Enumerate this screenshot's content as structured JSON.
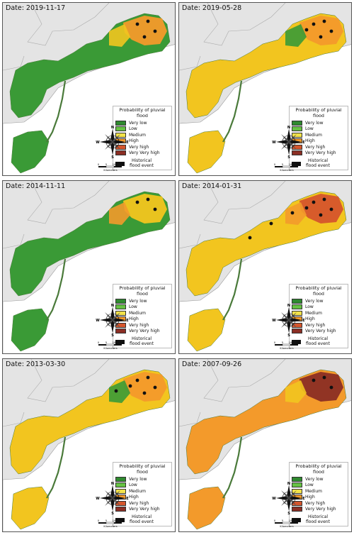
{
  "panels": [
    {
      "date": "Date: 2019-11-17",
      "dominant": "#3a9a36",
      "highlight": "#f39a2b",
      "extra": "#f2c51f",
      "hotspots": 4
    },
    {
      "date": "Date: 2019-05-28",
      "dominant": "#f2c51f",
      "highlight": "#f39a2b",
      "extra": "#3a9a36",
      "hotspots": 5
    },
    {
      "date": "Date: 2014-11-11",
      "dominant": "#3a9a36",
      "highlight": "#f2c51f",
      "extra": "#f39a2b",
      "hotspots": 3
    },
    {
      "date": "Date: 2014-01-31",
      "dominant": "#f2c51f",
      "highlight": "#d5552c",
      "extra": "#f39a2b",
      "hotspots": 8
    },
    {
      "date": "Date: 2013-03-30",
      "dominant": "#f2c51f",
      "highlight": "#f39a2b",
      "extra": "#3a9a36",
      "hotspots": 6
    },
    {
      "date": "Date: 2007-09-26",
      "dominant": "#f39a2b",
      "highlight": "#8b2e24",
      "extra": "#f2c51f",
      "hotspots": 3
    }
  ],
  "legend": {
    "title": "Probability of pluvial flood",
    "items": [
      {
        "label": "Very low",
        "color": "#2f8a2f"
      },
      {
        "label": "Low",
        "color": "#66c243"
      },
      {
        "label": "Medium",
        "color": "#f2e24a"
      },
      {
        "label": "High",
        "color": "#f39a2b"
      },
      {
        "label": "Very high",
        "color": "#d5552c"
      },
      {
        "label": "Very Very high",
        "color": "#8b2e24"
      }
    ],
    "flood_label": "Historical flood event"
  },
  "compass": {
    "n": "N",
    "s": "S",
    "e": "E",
    "w": "W"
  },
  "scale": {
    "ticks": [
      "0",
      "5",
      "10",
      "15"
    ],
    "unit": "Kilometers"
  },
  "colors": {
    "background": "#e4e4e4",
    "land_border": "#999999",
    "sea": "#ffffff"
  }
}
